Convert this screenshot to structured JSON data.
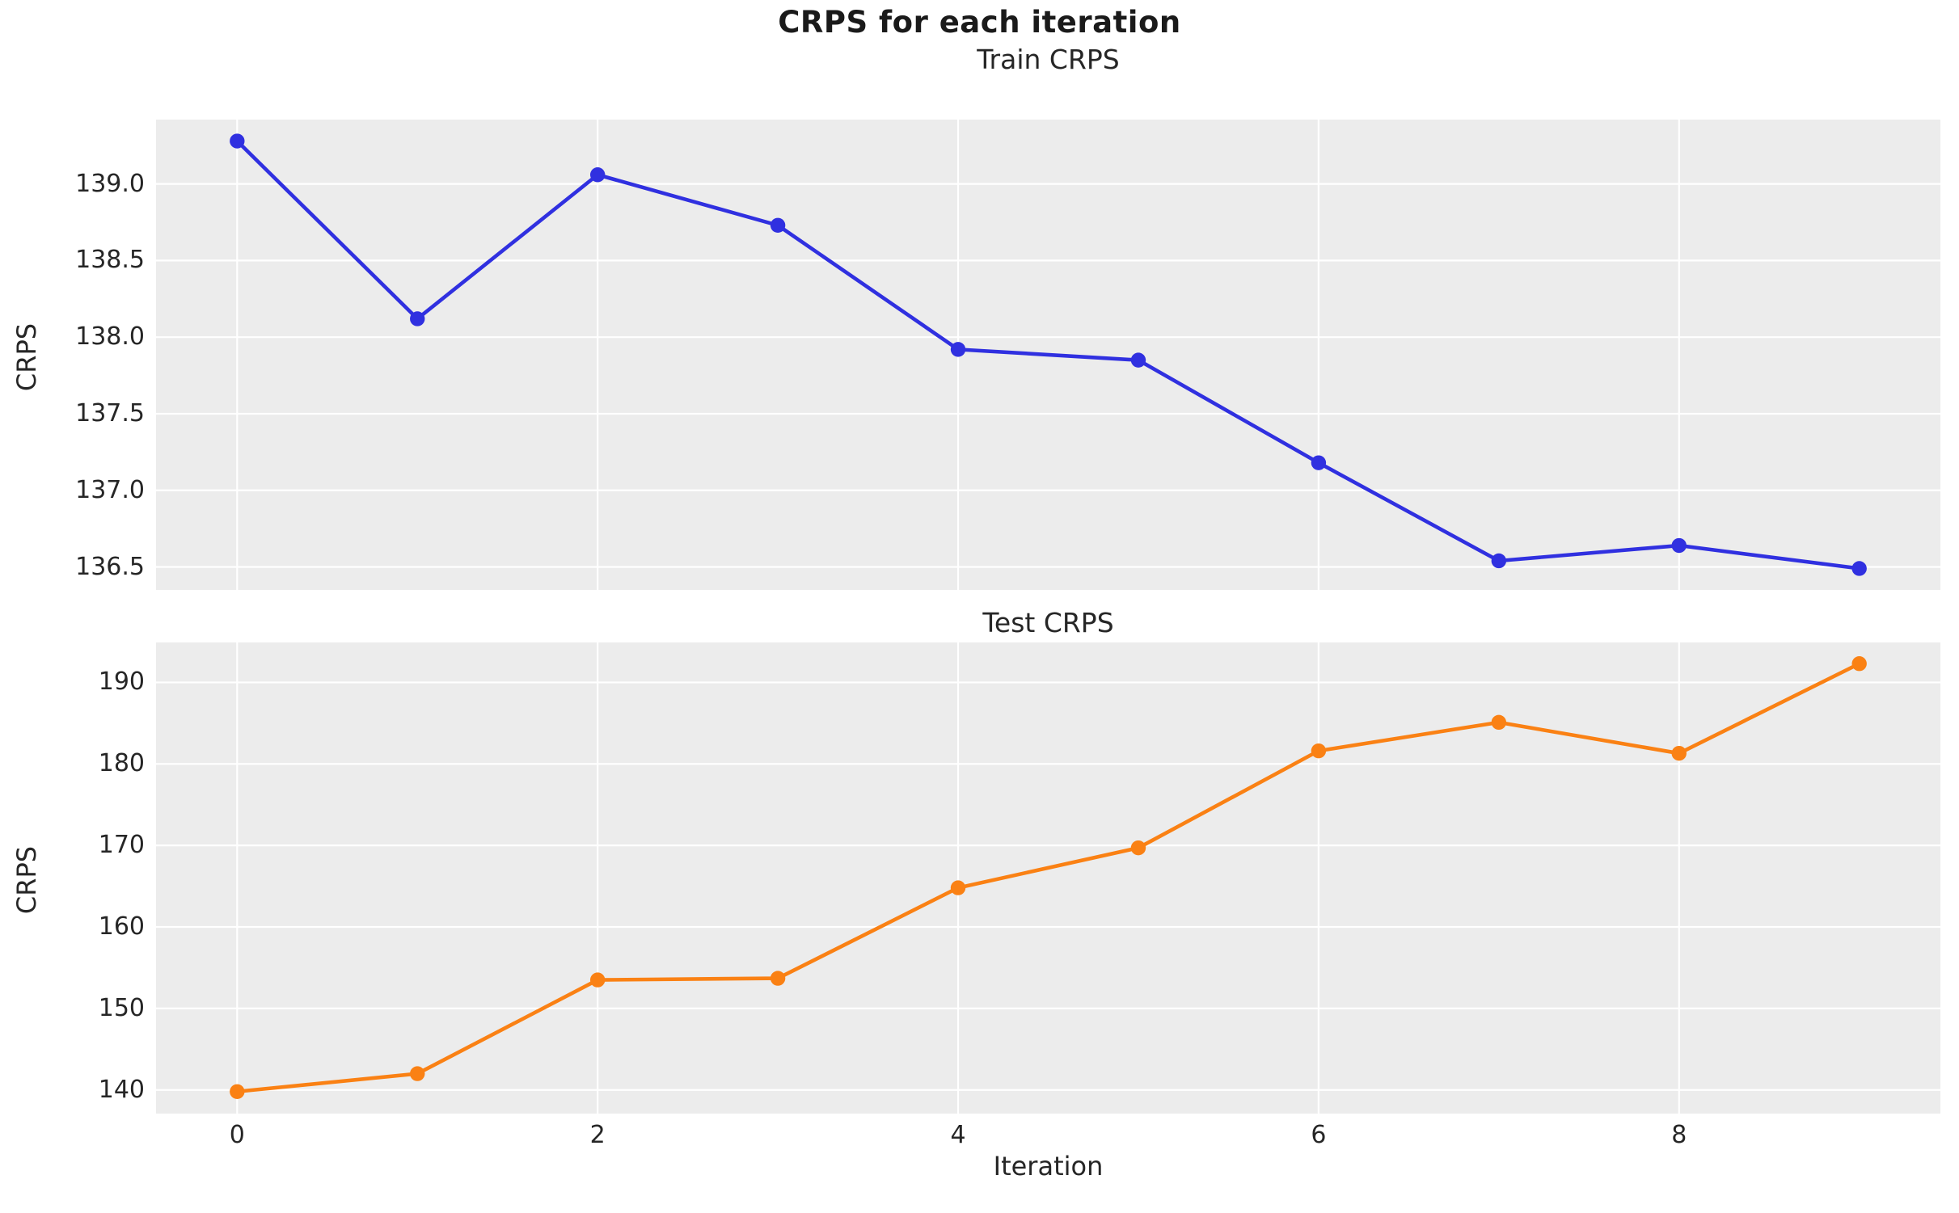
{
  "figure": {
    "title": "CRPS for each iteration"
  },
  "style": {
    "plot_bg": "#ececec",
    "grid_color": "#ffffff",
    "text_color": "#262626",
    "train_color": "#3030e0",
    "test_color": "#fa8114"
  },
  "chart_data": [
    {
      "type": "line",
      "title": "Train CRPS",
      "ylabel": "CRPS",
      "xlabel": "",
      "grid": true,
      "legend": "none",
      "xlim": [
        -0.45,
        9.45
      ],
      "ylim": [
        136.35,
        139.42
      ],
      "xticks": [
        0,
        2,
        4,
        6,
        8
      ],
      "xtick_labels": [],
      "show_xtick_labels": false,
      "yticks": [
        139.0,
        138.5,
        138.0,
        137.5,
        137.0,
        136.5
      ],
      "ytick_labels": [
        "139.0",
        "138.5",
        "138.0",
        "137.5",
        "137.0",
        "136.5"
      ],
      "series": [
        {
          "name": "Train CRPS",
          "color_key": "train_color",
          "x": [
            0,
            1,
            2,
            3,
            4,
            5,
            6,
            7,
            8,
            9
          ],
          "values": [
            139.28,
            138.12,
            139.06,
            138.73,
            137.92,
            137.85,
            137.18,
            136.54,
            136.64,
            136.49
          ]
        }
      ]
    },
    {
      "type": "line",
      "title": "Test CRPS",
      "ylabel": "CRPS",
      "xlabel": "Iteration",
      "grid": true,
      "legend": "none",
      "xlim": [
        -0.45,
        9.45
      ],
      "ylim": [
        137.1,
        194.9
      ],
      "xticks": [
        0,
        2,
        4,
        6,
        8
      ],
      "xtick_labels": [
        "0",
        "2",
        "4",
        "6",
        "8"
      ],
      "show_xtick_labels": true,
      "yticks": [
        190,
        180,
        170,
        160,
        150,
        140
      ],
      "ytick_labels": [
        "190",
        "180",
        "170",
        "160",
        "150",
        "140"
      ],
      "series": [
        {
          "name": "Test CRPS",
          "color_key": "test_color",
          "x": [
            0,
            1,
            2,
            3,
            4,
            5,
            6,
            7,
            8,
            9
          ],
          "values": [
            139.8,
            142.0,
            153.5,
            153.7,
            164.8,
            169.7,
            181.6,
            185.1,
            181.3,
            192.3
          ]
        }
      ]
    }
  ]
}
